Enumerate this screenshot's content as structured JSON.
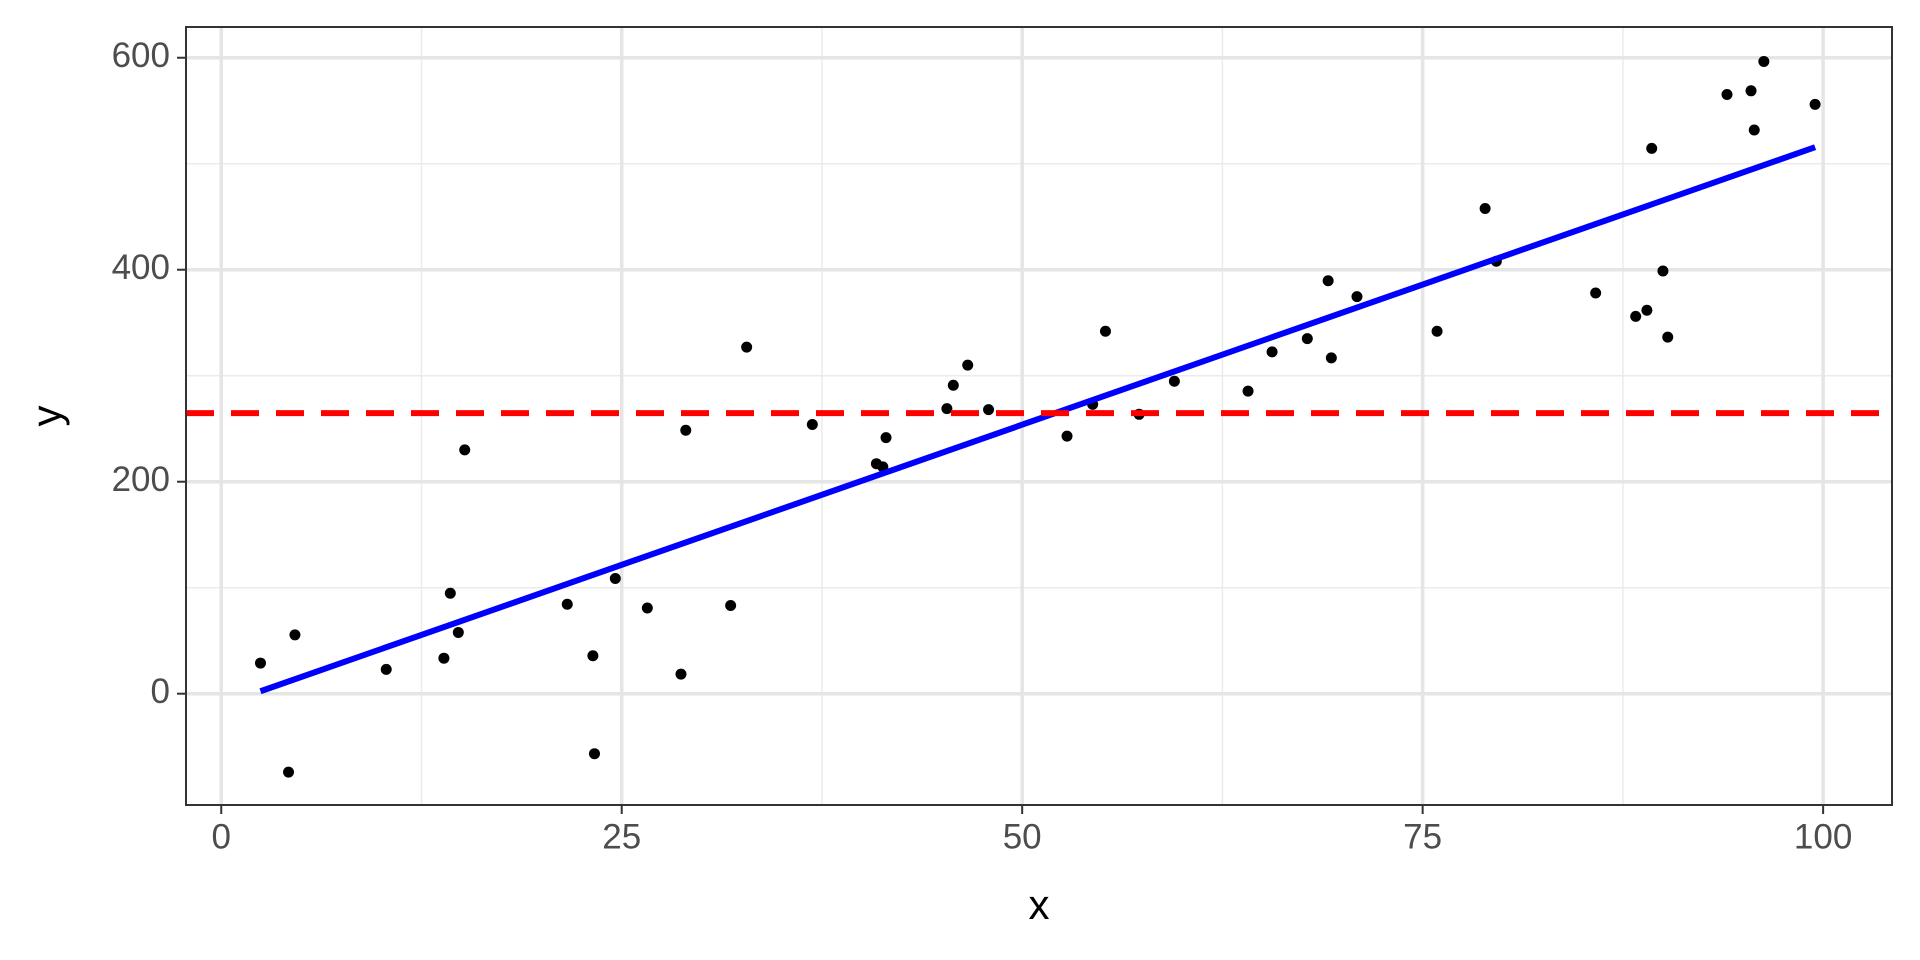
{
  "chart_data": {
    "type": "scatter",
    "xlabel": "x",
    "ylabel": "y",
    "xlim": [
      -2.2,
      104.3
    ],
    "ylim": [
      -105,
      629
    ],
    "xticks": [
      0,
      25,
      50,
      75,
      100
    ],
    "yticks": [
      0,
      200,
      400,
      600
    ],
    "xminor": [
      12.5,
      37.5,
      62.5,
      87.5
    ],
    "yminor": [
      100,
      300,
      500
    ],
    "grid": true,
    "series": [
      {
        "type": "scatter",
        "color": "#000000",
        "x": [
          2.45,
          4.6,
          4.2,
          10.3,
          13.9,
          14.3,
          14.8,
          15.2,
          21.6,
          23.2,
          23.3,
          24.6,
          26.6,
          28.7,
          29.0,
          31.8,
          32.8,
          36.9,
          40.9,
          41.3,
          41.5,
          45.3,
          45.7,
          46.6,
          47.9,
          52.8,
          54.4,
          55.2,
          57.3,
          59.5,
          64.1,
          65.6,
          67.8,
          69.1,
          69.3,
          70.9,
          75.9,
          78.9,
          79.6,
          85.8,
          88.3,
          89.0,
          89.3,
          90.0,
          90.3,
          94.0,
          95.5,
          95.7,
          96.3,
          99.5
        ],
        "values": [
          28.9,
          55.5,
          -74,
          23,
          33.5,
          94.8,
          57.8,
          230,
          84.4,
          35.8,
          -56.6,
          108.7,
          80.9,
          18.5,
          248.6,
          83.2,
          327,
          254,
          217,
          214,
          241.6,
          269,
          291,
          310,
          268,
          243,
          273,
          342,
          263.6,
          294.8,
          285.5,
          322.5,
          335,
          389.6,
          316.8,
          374.6,
          342,
          457.8,
          408,
          378,
          356,
          361.8,
          514.5,
          398.8,
          336.4,
          565.3,
          568.8,
          531.8,
          596.5,
          556
        ]
      },
      {
        "type": "line",
        "color": "#0000ff",
        "x": [
          2.45,
          99.5
        ],
        "values": [
          2.3,
          515.6
        ]
      }
    ],
    "hline": {
      "value": 264.7,
      "color": "#ff0000",
      "dashed": true
    }
  }
}
